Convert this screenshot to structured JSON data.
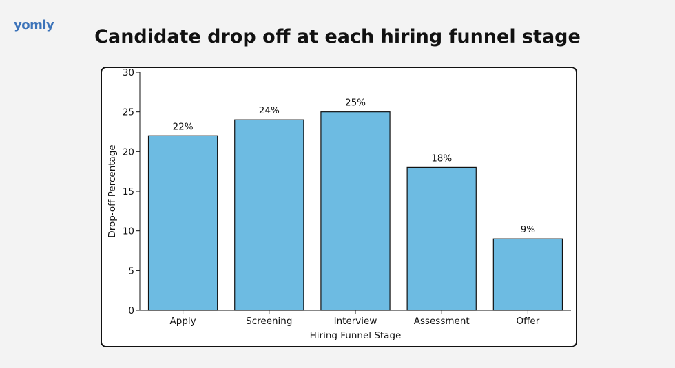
{
  "branding": {
    "logo_text": "yomly"
  },
  "page": {
    "title": "Candidate drop off at each hiring funnel stage"
  },
  "chart_data": {
    "type": "bar",
    "categories": [
      "Apply",
      "Screening",
      "Interview",
      "Assessment",
      "Offer"
    ],
    "values": [
      22,
      24,
      25,
      18,
      9
    ],
    "value_labels": [
      "22%",
      "24%",
      "25%",
      "18%",
      "9%"
    ],
    "xlabel": "Hiring Funnel Stage",
    "ylabel": "Drop-off Percentage",
    "ylim": [
      0,
      30
    ],
    "yticks": [
      0,
      5,
      10,
      15,
      20,
      25,
      30
    ],
    "grid": false,
    "bar_color": "#6dbbe2",
    "bar_edge_color": "#111111"
  }
}
